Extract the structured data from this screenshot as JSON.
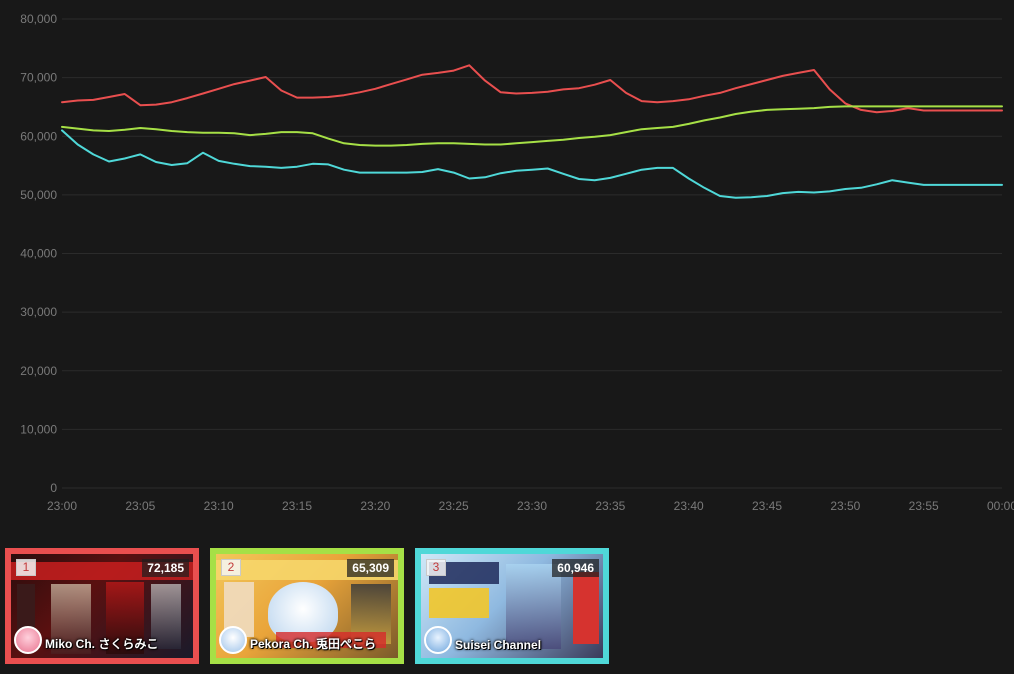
{
  "chart_data": {
    "type": "line",
    "x": [
      "23:00",
      "23:01",
      "23:02",
      "23:03",
      "23:04",
      "23:05",
      "23:06",
      "23:07",
      "23:08",
      "23:09",
      "23:10",
      "23:11",
      "23:12",
      "23:13",
      "23:14",
      "23:15",
      "23:16",
      "23:17",
      "23:18",
      "23:19",
      "23:20",
      "23:21",
      "23:22",
      "23:23",
      "23:24",
      "23:25",
      "23:26",
      "23:27",
      "23:28",
      "23:29",
      "23:30",
      "23:31",
      "23:32",
      "23:33",
      "23:34",
      "23:35",
      "23:36",
      "23:37",
      "23:38",
      "23:39",
      "23:40",
      "23:41",
      "23:42",
      "23:43",
      "23:44",
      "23:45",
      "23:46",
      "23:47",
      "23:48",
      "23:49",
      "23:50",
      "23:51",
      "23:52",
      "23:53",
      "23:54",
      "23:55",
      "23:56",
      "23:57",
      "23:58",
      "23:59",
      "00:00"
    ],
    "xticks": [
      "23:00",
      "23:05",
      "23:10",
      "23:15",
      "23:20",
      "23:25",
      "23:30",
      "23:35",
      "23:40",
      "23:45",
      "23:50",
      "23:55",
      "00:00"
    ],
    "yticks": [
      0,
      10000,
      20000,
      30000,
      40000,
      50000,
      60000,
      70000,
      80000
    ],
    "ytick_labels": [
      "0",
      "10,000",
      "20,000",
      "30,000",
      "40,000",
      "50,000",
      "60,000",
      "70,000",
      "80,000"
    ],
    "ylim": [
      0,
      80000
    ],
    "grid": true,
    "series": [
      {
        "color": "#e94f4f",
        "values": [
          65800,
          66100,
          66200,
          66700,
          67200,
          65300,
          65400,
          65800,
          66500,
          67300,
          68100,
          68900,
          69500,
          70100,
          67800,
          66600,
          66600,
          66700,
          67000,
          67500,
          68100,
          68900,
          69700,
          70500,
          70800,
          71200,
          72100,
          69500,
          67500,
          67300,
          67400,
          67600,
          68000,
          68200,
          68800,
          69600,
          67400,
          66000,
          65800,
          66000,
          66300,
          66900,
          67400,
          68200,
          68900,
          69600,
          70300,
          70800,
          71300,
          68000,
          65600,
          64500,
          64100,
          64300,
          64800,
          64400,
          64400,
          64400,
          64400,
          64400,
          64400
        ]
      },
      {
        "color": "#a6e046",
        "values": [
          61600,
          61300,
          61000,
          60900,
          61100,
          61400,
          61200,
          60900,
          60700,
          60600,
          60600,
          60500,
          60200,
          60400,
          60700,
          60700,
          60500,
          59600,
          58800,
          58500,
          58400,
          58400,
          58500,
          58700,
          58800,
          58800,
          58700,
          58600,
          58600,
          58800,
          59000,
          59200,
          59400,
          59700,
          59900,
          60200,
          60700,
          61200,
          61400,
          61600,
          62100,
          62700,
          63200,
          63800,
          64200,
          64500,
          64600,
          64700,
          64800,
          65000,
          65100,
          65100,
          65100,
          65100,
          65100,
          65100,
          65100,
          65100,
          65100,
          65100,
          65100
        ]
      },
      {
        "color": "#4fd8d8",
        "values": [
          61000,
          58600,
          56900,
          55700,
          56200,
          56900,
          55600,
          55100,
          55400,
          57200,
          55800,
          55300,
          54900,
          54800,
          54600,
          54800,
          55300,
          55200,
          54300,
          53800,
          53800,
          53800,
          53800,
          53900,
          54400,
          53800,
          52800,
          53000,
          53700,
          54100,
          54300,
          54500,
          53600,
          52700,
          52500,
          52900,
          53600,
          54300,
          54600,
          54600,
          52800,
          51200,
          49800,
          49500,
          49600,
          49800,
          50300,
          50500,
          50400,
          50600,
          51000,
          51200,
          51800,
          52500,
          52100,
          51700,
          51700,
          51700,
          51700,
          51700,
          51700
        ]
      }
    ]
  },
  "ranking": [
    {
      "rank": "1",
      "count": "72,185",
      "channel": "Miko Ch. さくらみこ",
      "border": "#e94f4f"
    },
    {
      "rank": "2",
      "count": "65,309",
      "channel": "Pekora Ch. 兎田ぺこら",
      "border": "#a6e046"
    },
    {
      "rank": "3",
      "count": "60,946",
      "channel": "Suisei Channel",
      "border": "#4fd8d8"
    }
  ]
}
